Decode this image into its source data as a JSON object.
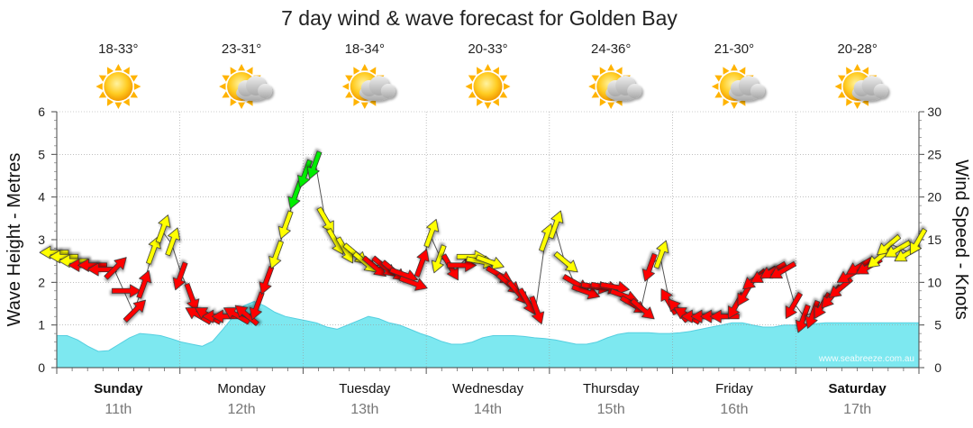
{
  "title": "7 day wind & wave forecast for Golden Bay",
  "watermark": "www.seabreeze.com.au",
  "colors": {
    "wave_fill": "#7de8f0",
    "wave_line": "#55cfe0",
    "wind_light": "#ffff00",
    "wind_medium": "#ff0000",
    "wind_strong": "#00ee00",
    "arrow_outline": "#333333",
    "grid": "#9a9a9a",
    "sun": "#ffb300",
    "cloud": "#c8c8c8"
  },
  "days": [
    {
      "name": "Sunday",
      "date": "11th",
      "bold": true,
      "temp": "18-33°",
      "icon": "sun-icon"
    },
    {
      "name": "Monday",
      "date": "12th",
      "bold": false,
      "temp": "23-31°",
      "icon": "sun-cloud-icon"
    },
    {
      "name": "Tuesday",
      "date": "13th",
      "bold": false,
      "temp": "18-34°",
      "icon": "sun-cloud-icon"
    },
    {
      "name": "Wednesday",
      "date": "14th",
      "bold": false,
      "temp": "20-33°",
      "icon": "sun-icon"
    },
    {
      "name": "Thursday",
      "date": "15th",
      "bold": false,
      "temp": "24-36°",
      "icon": "sun-cloud-icon"
    },
    {
      "name": "Friday",
      "date": "16th",
      "bold": false,
      "temp": "21-30°",
      "icon": "sun-cloud-icon"
    },
    {
      "name": "Saturday",
      "date": "17th",
      "bold": true,
      "temp": "20-28°",
      "icon": "sun-cloud-icon"
    }
  ],
  "chart_data": {
    "type": "area",
    "left_axis": {
      "label": "Wave Height - Metres",
      "min": 0,
      "max": 6,
      "ticks": [
        0,
        1,
        2,
        3,
        4,
        5,
        6
      ]
    },
    "right_axis": {
      "label": "Wind Speed - Knots",
      "min": 0,
      "max": 30,
      "ticks": [
        0,
        5,
        10,
        15,
        20,
        25,
        30
      ]
    },
    "grid": true,
    "wave_height_m": [
      0.75,
      0.75,
      0.65,
      0.5,
      0.38,
      0.4,
      0.55,
      0.7,
      0.8,
      0.78,
      0.75,
      0.68,
      0.6,
      0.55,
      0.5,
      0.62,
      0.9,
      1.2,
      1.45,
      1.55,
      1.45,
      1.3,
      1.2,
      1.15,
      1.1,
      1.05,
      0.95,
      0.9,
      1.0,
      1.1,
      1.2,
      1.15,
      1.05,
      1.0,
      0.9,
      0.8,
      0.72,
      0.62,
      0.55,
      0.55,
      0.6,
      0.7,
      0.75,
      0.75,
      0.75,
      0.73,
      0.7,
      0.68,
      0.65,
      0.6,
      0.55,
      0.55,
      0.6,
      0.7,
      0.78,
      0.82,
      0.82,
      0.82,
      0.8,
      0.8,
      0.82,
      0.85,
      0.9,
      0.95,
      1.0,
      1.05,
      1.05,
      1.0,
      0.95,
      0.95,
      1.0,
      1.0,
      1.02,
      1.03,
      1.05,
      1.05,
      1.05,
      1.05,
      1.05,
      1.05,
      1.05,
      1.05,
      1.05,
      1.05
    ],
    "wind_knots": [
      13.5,
      13.0,
      12.5,
      12.0,
      12.0,
      11.5,
      11.5,
      9.0,
      6.5,
      9.5,
      13.5,
      16.0,
      14.5,
      11.0,
      8.5,
      6.0,
      6.0,
      6.0,
      6.0,
      6.0,
      6.0,
      7.5,
      10.5,
      13.5,
      17.0,
      20.5,
      23.0,
      24.0,
      17.5,
      15.0,
      14.0,
      13.5,
      12.5,
      12.0,
      12.0,
      11.5,
      11.0,
      10.0,
      12.0,
      15.5,
      13.0,
      12.0,
      12.0,
      13.0,
      12.5,
      12.5,
      11.0,
      10.0,
      9.0,
      8.0,
      7.0,
      15.0,
      16.5,
      12.5,
      10.0,
      9.0,
      9.5,
      9.5,
      9.5,
      8.5,
      7.5,
      7.0,
      12.0,
      13.0,
      7.5,
      6.5,
      6.0,
      6.0,
      6.0,
      6.0,
      6.0,
      7.5,
      9.0,
      10.5,
      11.0,
      11.5,
      11.5,
      7.5,
      6.0,
      6.5,
      7.5,
      8.5,
      9.5,
      11.0,
      12.0,
      12.0,
      13.0,
      14.5,
      14.0,
      13.5,
      15.0
    ],
    "wind_dir_deg": [
      270,
      270,
      270,
      270,
      270,
      270,
      45,
      90,
      45,
      20,
      20,
      20,
      20,
      200,
      160,
      300,
      300,
      270,
      270,
      300,
      310,
      200,
      200,
      200,
      200,
      200,
      200,
      200,
      150,
      150,
      150,
      130,
      130,
      130,
      130,
      130,
      110,
      110,
      20,
      20,
      200,
      150,
      90,
      90,
      100,
      110,
      120,
      130,
      140,
      150,
      160,
      20,
      20,
      130,
      120,
      110,
      100,
      100,
      100,
      110,
      120,
      130,
      200,
      20,
      330,
      320,
      300,
      270,
      270,
      270,
      270,
      210,
      210,
      230,
      240,
      240,
      240,
      210,
      200,
      200,
      210,
      220,
      230,
      240,
      240,
      240,
      230,
      230,
      240,
      240,
      210
    ]
  }
}
